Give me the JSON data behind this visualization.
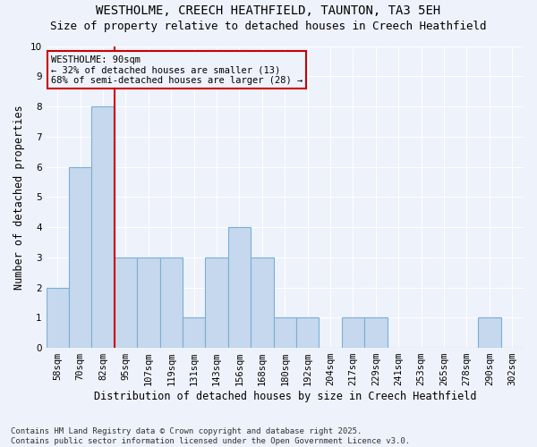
{
  "title": "WESTHOLME, CREECH HEATHFIELD, TAUNTON, TA3 5EH",
  "subtitle": "Size of property relative to detached houses in Creech Heathfield",
  "xlabel": "Distribution of detached houses by size in Creech Heathfield",
  "ylabel": "Number of detached properties",
  "categories": [
    "58sqm",
    "70sqm",
    "82sqm",
    "95sqm",
    "107sqm",
    "119sqm",
    "131sqm",
    "143sqm",
    "156sqm",
    "168sqm",
    "180sqm",
    "192sqm",
    "204sqm",
    "217sqm",
    "229sqm",
    "241sqm",
    "253sqm",
    "265sqm",
    "278sqm",
    "290sqm",
    "302sqm"
  ],
  "values": [
    2,
    6,
    8,
    3,
    3,
    3,
    1,
    3,
    4,
    3,
    1,
    1,
    0,
    1,
    1,
    0,
    0,
    0,
    0,
    1,
    0
  ],
  "bar_color": "#c5d8ee",
  "bar_edge_color": "#7ab0d4",
  "background_color": "#eef2fb",
  "grid_color": "#ffffff",
  "annotation_box_color": "#cc0000",
  "annotation_text": "WESTHOLME: 90sqm\n← 32% of detached houses are smaller (13)\n68% of semi-detached houses are larger (28) →",
  "vline_x_index": 2,
  "vline_color": "#cc0000",
  "ylim": [
    0,
    10
  ],
  "yticks": [
    0,
    1,
    2,
    3,
    4,
    5,
    6,
    7,
    8,
    9,
    10
  ],
  "footer": "Contains HM Land Registry data © Crown copyright and database right 2025.\nContains public sector information licensed under the Open Government Licence v3.0.",
  "title_fontsize": 10,
  "subtitle_fontsize": 9,
  "xlabel_fontsize": 8.5,
  "ylabel_fontsize": 8.5,
  "tick_fontsize": 7.5,
  "footer_fontsize": 6.5
}
